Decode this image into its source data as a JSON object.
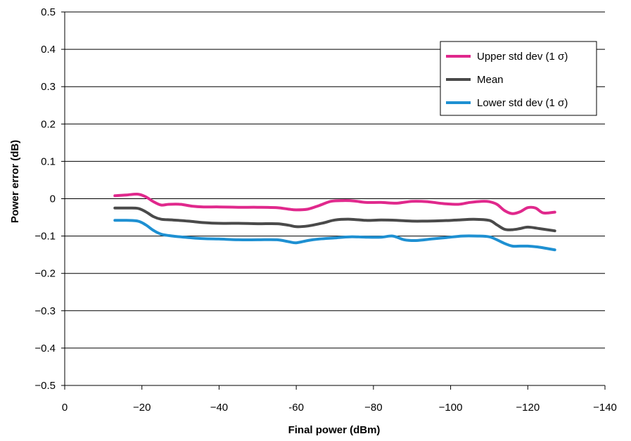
{
  "chart_data": {
    "type": "line",
    "title": "",
    "xlabel": "Final power (dBm)",
    "ylabel": "Power error (dB)",
    "xlim": [
      0,
      -140
    ],
    "ylim": [
      -0.5,
      0.5
    ],
    "x_ticks": [
      0,
      -20,
      -40,
      -60,
      -80,
      -100,
      -120,
      -140
    ],
    "x_tick_labels": [
      "0",
      "−20",
      "−40",
      "-60",
      "−80",
      "−100",
      "−120",
      "−140"
    ],
    "y_ticks": [
      0.5,
      0.4,
      0.3,
      0.2,
      0.1,
      0,
      -0.1,
      -0.2,
      -0.3,
      -0.4,
      -0.5
    ],
    "y_tick_labels": [
      "0.5",
      "0.4",
      "0.3",
      "0.2",
      "0.1",
      "0",
      "−0.1",
      "−0.2",
      "−0.3",
      "−0.4",
      "−0.5"
    ],
    "grid": "horizontal",
    "legend_position": "top-right",
    "series": [
      {
        "name": "Upper std dev (1 σ)",
        "color": "#e0288c",
        "x": [
          -13,
          -16,
          -19,
          -21,
          -23,
          -25,
          -27,
          -30,
          -33,
          -36,
          -40,
          -45,
          -50,
          -55,
          -58,
          -60,
          -63,
          -66,
          -69,
          -72,
          -75,
          -78,
          -82,
          -86,
          -90,
          -94,
          -98,
          -102,
          -105,
          -108,
          -110,
          -112,
          -114,
          -116,
          -118,
          -120,
          -122,
          -124,
          -127
        ],
        "values": [
          0.008,
          0.01,
          0.012,
          0.005,
          -0.008,
          -0.017,
          -0.015,
          -0.015,
          -0.02,
          -0.022,
          -0.022,
          -0.023,
          -0.023,
          -0.024,
          -0.028,
          -0.03,
          -0.028,
          -0.018,
          -0.007,
          -0.005,
          -0.006,
          -0.01,
          -0.01,
          -0.012,
          -0.007,
          -0.008,
          -0.013,
          -0.015,
          -0.01,
          -0.007,
          -0.008,
          -0.015,
          -0.032,
          -0.04,
          -0.035,
          -0.024,
          -0.025,
          -0.038,
          -0.036
        ]
      },
      {
        "name": "Mean",
        "color": "#4a4a4a",
        "x": [
          -13,
          -16,
          -19,
          -21,
          -23,
          -25,
          -28,
          -32,
          -36,
          -40,
          -45,
          -50,
          -55,
          -58,
          -60,
          -63,
          -67,
          -70,
          -74,
          -78,
          -82,
          -86,
          -90,
          -94,
          -98,
          -102,
          -106,
          -110,
          -112,
          -114,
          -116,
          -118,
          -120,
          -123,
          -127
        ],
        "values": [
          -0.025,
          -0.025,
          -0.026,
          -0.035,
          -0.048,
          -0.055,
          -0.057,
          -0.06,
          -0.064,
          -0.066,
          -0.066,
          -0.067,
          -0.067,
          -0.071,
          -0.075,
          -0.073,
          -0.065,
          -0.057,
          -0.055,
          -0.058,
          -0.057,
          -0.058,
          -0.06,
          -0.06,
          -0.059,
          -0.057,
          -0.055,
          -0.058,
          -0.07,
          -0.082,
          -0.083,
          -0.08,
          -0.076,
          -0.08,
          -0.086
        ]
      },
      {
        "name": "Lower std dev (1 σ)",
        "color": "#1e90d2",
        "x": [
          -13,
          -16,
          -19,
          -21,
          -23,
          -25,
          -28,
          -32,
          -36,
          -40,
          -45,
          -50,
          -55,
          -58,
          -60,
          -63,
          -66,
          -70,
          -74,
          -78,
          -82,
          -85,
          -88,
          -91,
          -95,
          -99,
          -103,
          -107,
          -110,
          -112,
          -114,
          -116,
          -118,
          -120,
          -123,
          -127
        ],
        "values": [
          -0.058,
          -0.058,
          -0.06,
          -0.07,
          -0.085,
          -0.095,
          -0.1,
          -0.104,
          -0.107,
          -0.108,
          -0.11,
          -0.11,
          -0.11,
          -0.115,
          -0.118,
          -0.112,
          -0.108,
          -0.105,
          -0.102,
          -0.103,
          -0.103,
          -0.1,
          -0.11,
          -0.112,
          -0.108,
          -0.104,
          -0.1,
          -0.1,
          -0.102,
          -0.11,
          -0.12,
          -0.127,
          -0.127,
          -0.127,
          -0.13,
          -0.137
        ]
      }
    ]
  }
}
